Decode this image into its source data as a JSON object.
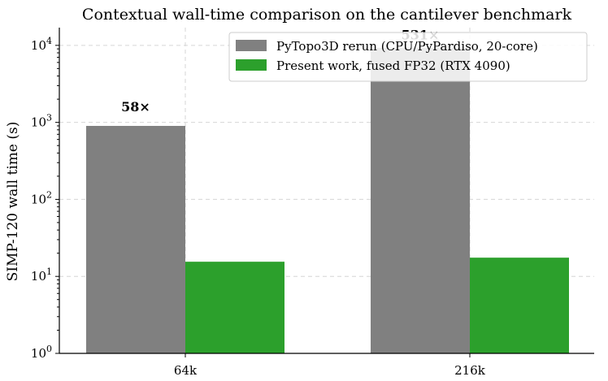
{
  "chart_data": {
    "type": "bar",
    "title": "Contextual wall-time comparison on the cantilever benchmark",
    "xlabel": "",
    "ylabel": "SIMP-120 wall time (s)",
    "yscale": "log",
    "ylim": [
      1,
      17000
    ],
    "yticks": [
      {
        "value": 1,
        "base": "10",
        "exp": "0"
      },
      {
        "value": 10,
        "base": "10",
        "exp": "1"
      },
      {
        "value": 100,
        "base": "10",
        "exp": "2"
      },
      {
        "value": 1000,
        "base": "10",
        "exp": "3"
      },
      {
        "value": 10000,
        "base": "10",
        "exp": "4"
      }
    ],
    "categories": [
      "64k",
      "216k"
    ],
    "series": [
      {
        "name": "PyTopo3D rerun (CPU/PyPardiso, 20-core)",
        "color": "#808080",
        "values": [
          900,
          9300
        ]
      },
      {
        "name": "Present work, fused FP32 (RTX 4090)",
        "color": "#2ca02c",
        "values": [
          15.5,
          17.5
        ]
      }
    ],
    "annotations": [
      {
        "text": "58×",
        "category": "64k",
        "y": 1400
      },
      {
        "text": "531×",
        "category": "216k",
        "y": 12000
      }
    ],
    "grid": true,
    "legend_position": "top-right"
  }
}
